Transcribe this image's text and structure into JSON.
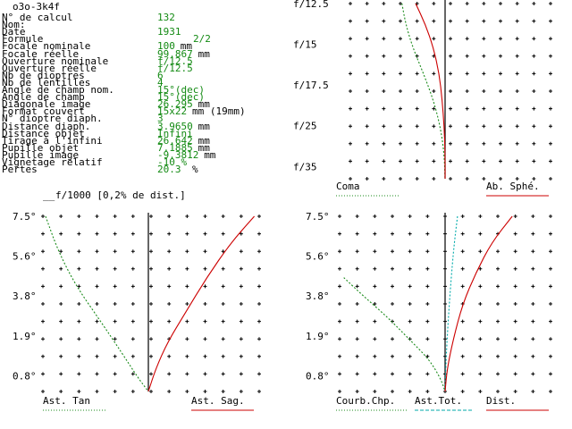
{
  "title": "o3o-3k4f",
  "colors": {
    "value": "#138a13",
    "red": "#cc0000",
    "green": "#1a8a1a",
    "cyan": "#00aaaa",
    "axis": "#000000"
  },
  "info_rows": [
    {
      "label": "N° de calcul",
      "value": "132",
      "unit": ""
    },
    {
      "label": "Nom:",
      "value": "",
      "unit": ""
    },
    {
      "label": "Date",
      "value": "1931",
      "unit": ""
    },
    {
      "label": "Formule",
      "value": "2/2",
      "unit": ""
    },
    {
      "label": "Focale nominale",
      "value": "100",
      "unit": "mm"
    },
    {
      "label": "Focale réelle",
      "value": "99.867",
      "unit": "mm"
    },
    {
      "label": "Ouverture nominale",
      "value": "f/12.5",
      "unit": ""
    },
    {
      "label": "Ouverture réelle",
      "value": "f/12.5",
      "unit": ""
    },
    {
      "label": "Nb de dioptres",
      "value": "6",
      "unit": ""
    },
    {
      "label": "Nb de lentilles",
      "value": "4",
      "unit": ""
    },
    {
      "label": "Angle de champ nom.",
      "value": "15°(dec)",
      "unit": ""
    },
    {
      "label": "Angle de champ",
      "value": "15°(dec)",
      "unit": ""
    },
    {
      "label": "Diagonale image",
      "value": "26.295",
      "unit": "mm"
    },
    {
      "label": "Format couvert",
      "value": "15x22",
      "unit": "mm (19mm)"
    },
    {
      "label": "N° dioptre diaph.",
      "value": "3",
      "unit": ""
    },
    {
      "label": "Distance diaph.",
      "value": "3.9650",
      "unit": "mm"
    },
    {
      "label": "Distance objet",
      "value": "Infini",
      "unit": ""
    },
    {
      "label": "Tirage à l'infini",
      "value": "26.642",
      "unit": "mm"
    },
    {
      "label": "Pupille objet",
      "value": "7.1885",
      "unit": "mm"
    },
    {
      "label": "Pupille image",
      "value": "-9.3812",
      "unit": "mm"
    },
    {
      "label": "Vignetage relatif",
      "value": "-10 %",
      "unit": ""
    },
    {
      "label": "Pertes",
      "value": "20.3",
      "unit": " %"
    }
  ],
  "scale_note": "f/1000 [0,2% de dist.]",
  "chart_data": [
    {
      "type": "line",
      "name": "aperture-plot",
      "y_tick_labels": [
        "f/12.5",
        "f/15",
        "f/17.5",
        "f/25",
        "f/35"
      ],
      "legend": [
        {
          "label": "Coma",
          "color": "#1a8a1a",
          "style": "dotted"
        },
        {
          "label": "Ab. Sphé.",
          "color": "#cc0000",
          "style": "solid"
        }
      ],
      "series": [
        {
          "name": "Coma",
          "color": "#1a8a1a",
          "dashed": true,
          "points": [
            [
              -0.44,
              0
            ],
            [
              -0.4,
              0.12
            ],
            [
              -0.33,
              0.25
            ],
            [
              -0.22,
              0.4
            ],
            [
              -0.12,
              0.55
            ],
            [
              -0.05,
              0.7
            ],
            [
              -0.01,
              0.85
            ],
            [
              0,
              1
            ]
          ]
        },
        {
          "name": "Ab. Sphé.",
          "color": "#cc0000",
          "dashed": false,
          "points": [
            [
              -0.3,
              0
            ],
            [
              -0.2,
              0.12
            ],
            [
              -0.12,
              0.25
            ],
            [
              -0.06,
              0.4
            ],
            [
              -0.03,
              0.55
            ],
            [
              -0.01,
              0.7
            ],
            [
              0,
              0.85
            ],
            [
              0,
              1
            ]
          ]
        }
      ]
    },
    {
      "type": "line",
      "name": "astigmatism-plot",
      "y_tick_labels": [
        "7.5°",
        "5.6°",
        "3.8°",
        "1.9°",
        "0.8°"
      ],
      "legend": [
        {
          "label": "Ast. Tan",
          "color": "#1a8a1a",
          "style": "dotted"
        },
        {
          "label": "Ast. Sag.",
          "color": "#cc0000",
          "style": "solid"
        }
      ],
      "series": [
        {
          "name": "Ast. Tan",
          "color": "#1a8a1a",
          "dashed": true,
          "points": [
            [
              -0.97,
              0
            ],
            [
              -0.85,
              0.2
            ],
            [
              -0.68,
              0.4
            ],
            [
              -0.45,
              0.6
            ],
            [
              -0.25,
              0.78
            ],
            [
              -0.1,
              0.92
            ],
            [
              0,
              1
            ]
          ]
        },
        {
          "name": "Ast. Sag.",
          "color": "#cc0000",
          "dashed": false,
          "points": [
            [
              1,
              0
            ],
            [
              0.78,
              0.15
            ],
            [
              0.55,
              0.35
            ],
            [
              0.35,
              0.55
            ],
            [
              0.18,
              0.72
            ],
            [
              0.07,
              0.87
            ],
            [
              0,
              1
            ]
          ]
        }
      ]
    },
    {
      "type": "line",
      "name": "field-curvature-plot",
      "y_tick_labels": [
        "7.5°",
        "5.6°",
        "3.8°",
        "1.9°",
        "0.8°"
      ],
      "legend": [
        {
          "label": "Courb.Chp.",
          "color": "#1a8a1a",
          "style": "dotted"
        },
        {
          "label": "Ast.Tot.",
          "color": "#00aaaa",
          "style": "dashed"
        },
        {
          "label": "Dist.",
          "color": "#cc0000",
          "style": "solid"
        }
      ],
      "series": [
        {
          "name": "Courb.Chp.",
          "color": "#1a8a1a",
          "dashed": true,
          "points": [
            [
              -0.98,
              0.35
            ],
            [
              -0.8,
              0.45
            ],
            [
              -0.55,
              0.58
            ],
            [
              -0.35,
              0.7
            ],
            [
              -0.15,
              0.82
            ],
            [
              -0.04,
              0.93
            ],
            [
              0,
              1
            ]
          ]
        },
        {
          "name": "Ast.Tot.",
          "color": "#00aaaa",
          "dashed": true,
          "points": [
            [
              0.12,
              0
            ],
            [
              0.08,
              0.2
            ],
            [
              0.04,
              0.5
            ],
            [
              0.01,
              0.8
            ],
            [
              0,
              1
            ]
          ]
        },
        {
          "name": "Dist.",
          "color": "#cc0000",
          "dashed": false,
          "points": [
            [
              0.65,
              0
            ],
            [
              0.45,
              0.15
            ],
            [
              0.3,
              0.32
            ],
            [
              0.17,
              0.5
            ],
            [
              0.08,
              0.7
            ],
            [
              0.02,
              0.87
            ],
            [
              0,
              1
            ]
          ]
        }
      ]
    }
  ]
}
